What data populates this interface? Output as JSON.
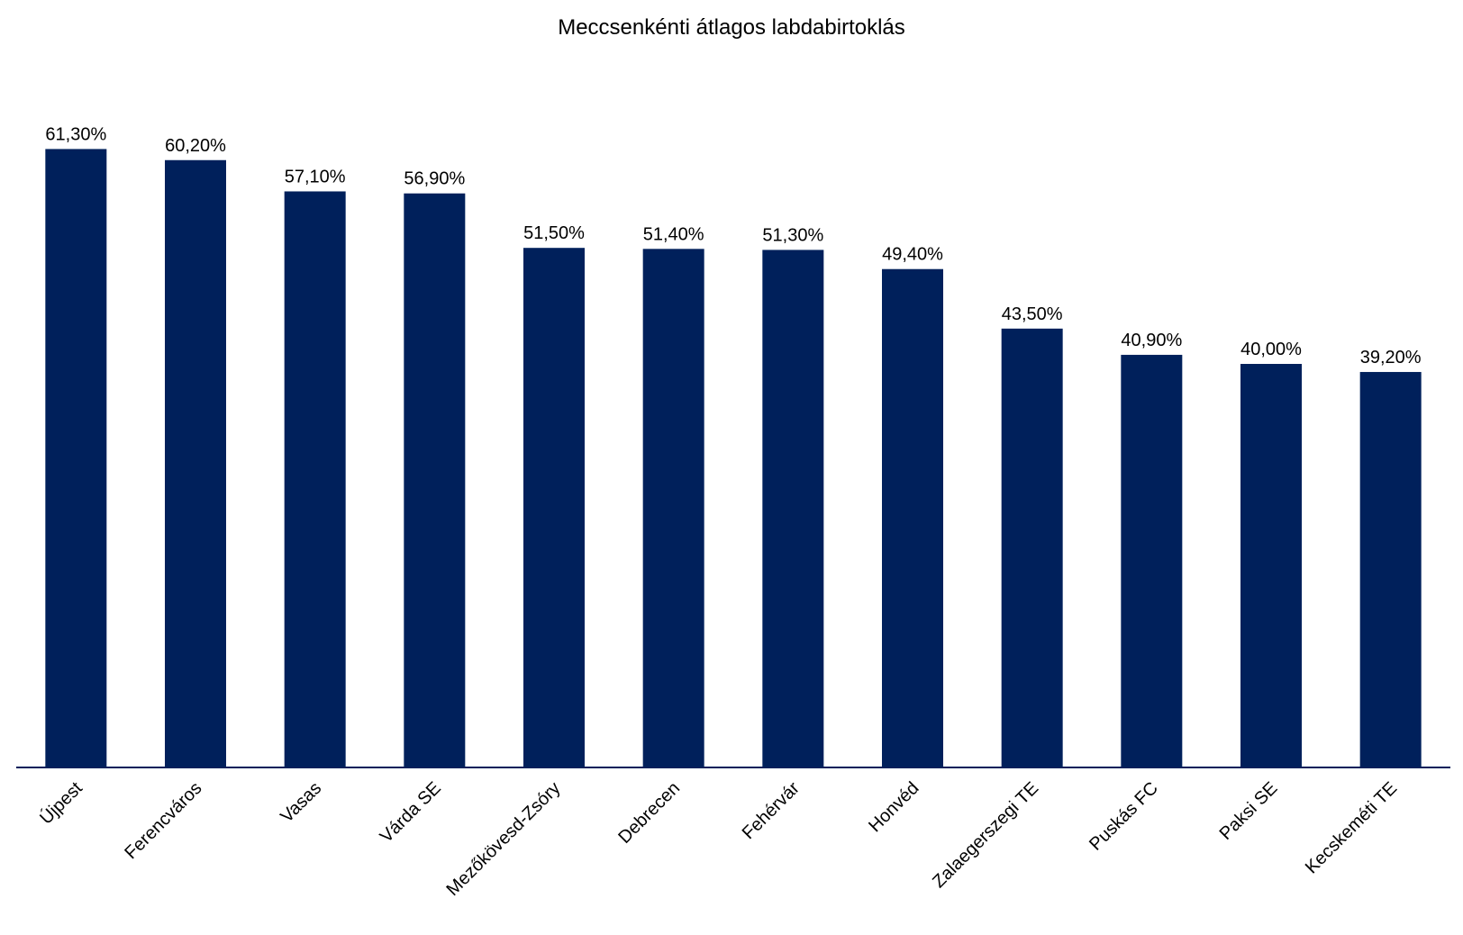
{
  "chart_data": {
    "type": "bar",
    "title": "Meccsenkénti átlagos labdabirtoklás",
    "xlabel": "",
    "ylabel": "",
    "categories": [
      "Újpest",
      "Ferencváros",
      "Vasas",
      "Várda SE",
      "Mezőkövesd-Zsóry",
      "Debrecen",
      "Fehérvár",
      "Honvéd",
      "Zalaegerszegi TE",
      "Puskás FC",
      "Paksi SE",
      "Kecskeméti TE"
    ],
    "values": [
      61.3,
      60.2,
      57.1,
      56.9,
      51.5,
      51.4,
      51.3,
      49.4,
      43.5,
      40.9,
      40.0,
      39.2
    ],
    "data_labels": [
      "61,30%",
      "60,20%",
      "57,10%",
      "56,90%",
      "51,50%",
      "51,40%",
      "51,30%",
      "49,40%",
      "43,50%",
      "40,90%",
      "40,00%",
      "39,20%"
    ],
    "ylim": [
      0,
      70
    ],
    "grid": false,
    "legend": "none",
    "bar_color": "#00205B",
    "axis_color": "#00205B"
  }
}
